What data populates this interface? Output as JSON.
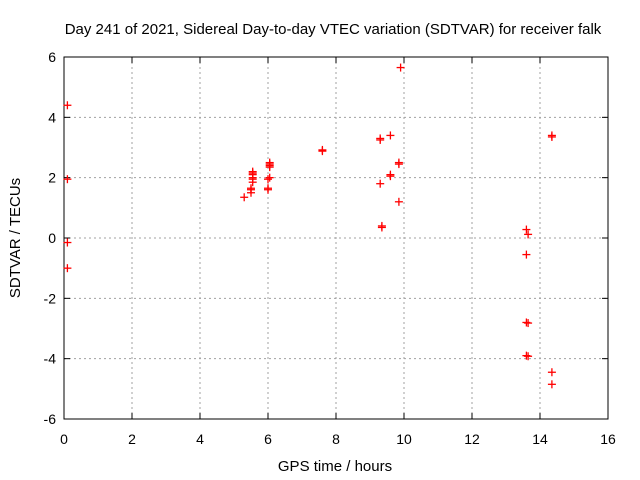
{
  "chart_data": {
    "type": "scatter",
    "title": "Day 241 of 2021, Sidereal Day-to-day VTEC variation (SDTVAR) for receiver falk",
    "xlabel": "GPS time / hours",
    "ylabel": "SDTVAR / TECUs",
    "xlim": [
      0,
      16
    ],
    "ylim": [
      -6,
      6
    ],
    "xticks": [
      0,
      2,
      4,
      6,
      8,
      10,
      12,
      14,
      16
    ],
    "yticks": [
      -6,
      -4,
      -2,
      0,
      2,
      4,
      6
    ],
    "grid": true,
    "marker_color": "#ff0000",
    "grid_color": "#a0a0a0",
    "x": [
      0.1,
      0.1,
      0.1,
      0.1,
      5.3,
      5.5,
      5.5,
      5.5,
      5.55,
      5.55,
      5.55,
      5.55,
      5.55,
      5.55,
      6.0,
      6.0,
      6.0,
      6.05,
      6.05,
      6.05,
      6.05,
      6.05,
      7.6,
      7.6,
      9.3,
      9.3,
      9.3,
      9.35,
      9.35,
      9.6,
      9.6,
      9.6,
      9.85,
      9.85,
      9.85,
      9.9,
      13.6,
      13.65,
      13.6,
      13.6,
      13.65,
      13.6,
      13.65,
      14.35,
      14.35,
      14.35,
      14.35
    ],
    "y": [
      4.4,
      1.95,
      -0.15,
      -1.0,
      1.35,
      1.5,
      1.6,
      1.65,
      1.85,
      1.95,
      2.0,
      2.1,
      2.15,
      2.2,
      1.6,
      1.65,
      1.95,
      2.0,
      2.35,
      2.4,
      2.45,
      2.5,
      2.88,
      2.92,
      3.25,
      3.3,
      1.8,
      0.35,
      0.4,
      3.4,
      2.05,
      2.1,
      2.45,
      2.5,
      1.2,
      5.65,
      0.28,
      0.12,
      -0.55,
      -2.8,
      -2.82,
      -3.9,
      -3.92,
      3.35,
      3.4,
      -4.45,
      -4.85
    ]
  }
}
